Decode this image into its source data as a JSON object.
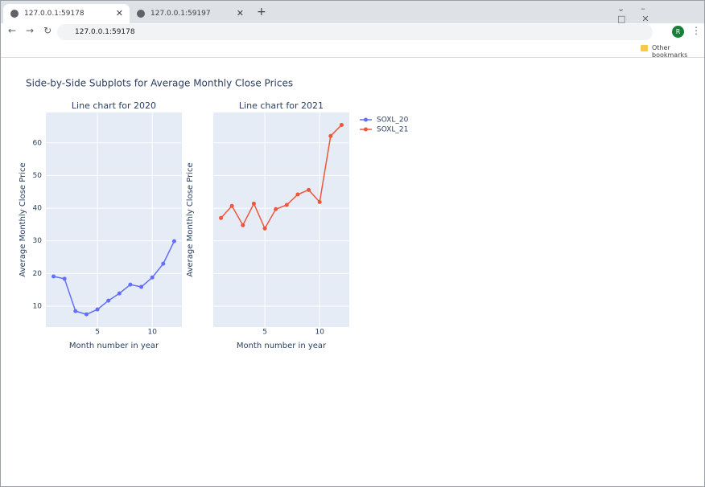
{
  "browser": {
    "tabs": [
      "127.0.0.1:59178",
      "127.0.0.1:59197"
    ],
    "url": "127.0.0.1:59178",
    "bookmarks": "Other bookmarks",
    "profile": "R"
  },
  "figure": {
    "title": "Side-by-Side Subplots for Average Monthly Close Prices"
  },
  "chart_data": [
    {
      "type": "line",
      "title": "Line chart for 2020",
      "x_label": "Month number in year",
      "y_label": "Average Monthly Close Price",
      "x": [
        1,
        2,
        3,
        4,
        5,
        6,
        7,
        8,
        9,
        10,
        11,
        12
      ],
      "series": [
        {
          "name": "SOXL_20",
          "color": "#636efa",
          "values": [
            19.1,
            18.4,
            8.5,
            7.5,
            9.0,
            11.7,
            13.9,
            16.6,
            15.9,
            18.8,
            23.0,
            29.9
          ]
        }
      ],
      "xlim": [
        0.3,
        12.7
      ],
      "ylim": [
        3.6,
        69.3
      ],
      "xticks": [
        5,
        10
      ],
      "yticks": [
        10,
        20,
        30,
        40,
        50,
        60
      ],
      "grid": true,
      "legend": "outside-right"
    },
    {
      "type": "line",
      "title": "Line chart for 2021",
      "x_label": "Month number in year",
      "y_label": "Average Monthly Close Price",
      "x": [
        1,
        2,
        3,
        4,
        5,
        6,
        7,
        8,
        9,
        10,
        11,
        12
      ],
      "series": [
        {
          "name": "SOXL_21",
          "color": "#ef553b",
          "values": [
            37.0,
            40.7,
            34.8,
            41.4,
            33.8,
            39.7,
            41.0,
            44.2,
            45.6,
            41.9,
            62.1,
            65.5
          ]
        }
      ],
      "xlim": [
        0.3,
        12.7
      ],
      "ylim": [
        3.6,
        69.3
      ],
      "xticks": [
        5,
        10
      ],
      "yticks": [
        10,
        20,
        30,
        40,
        50,
        60
      ],
      "grid": true,
      "legend": "outside-right",
      "shared_y": true
    }
  ]
}
